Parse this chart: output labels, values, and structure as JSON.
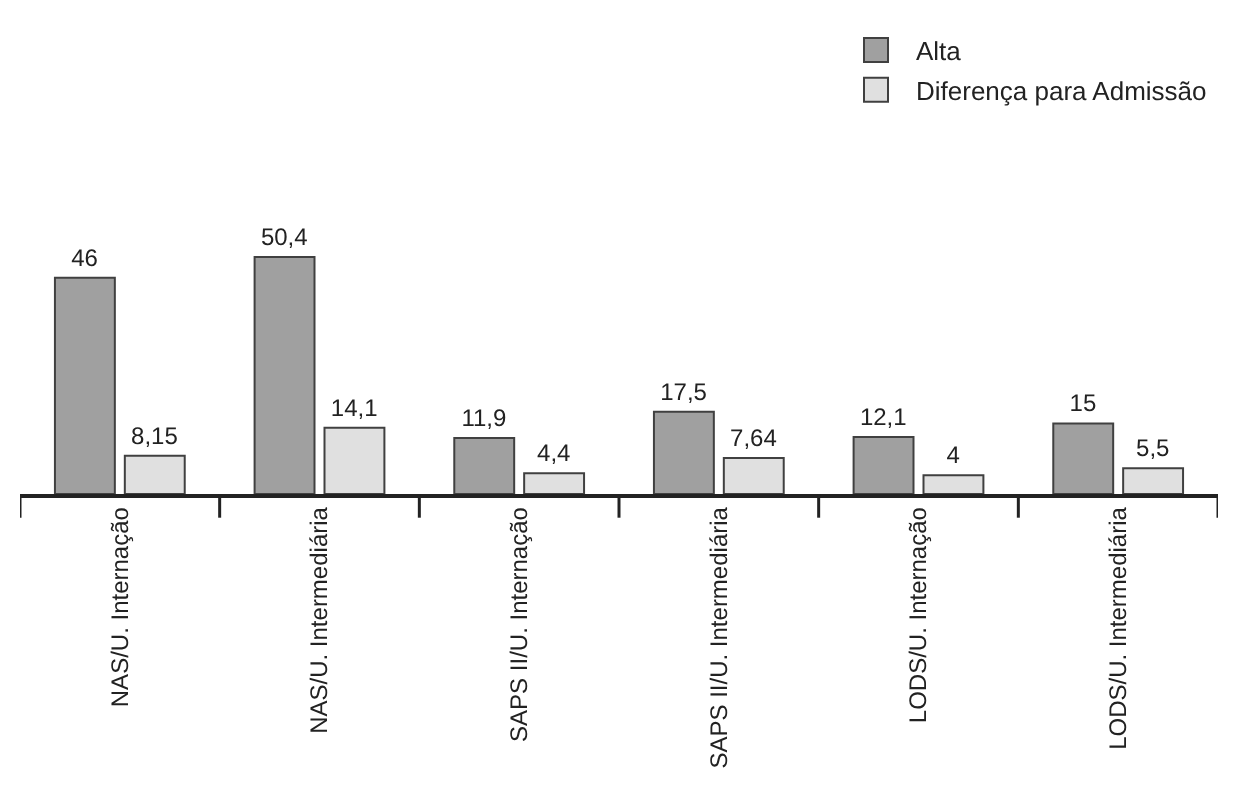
{
  "chart_data": {
    "type": "bar",
    "categories": [
      "NAS/U. Internação",
      "NAS/U. Intermediária",
      "SAPS II/U. Internação",
      "SAPS II/U. Intermediária",
      "LODS/U. Internação",
      "LODS/U. Intermediária"
    ],
    "series": [
      {
        "name": "Alta",
        "color": "#a0a0a0",
        "values": [
          46,
          50.4,
          11.9,
          17.5,
          12.1,
          15
        ],
        "value_labels": [
          "46",
          "50,4",
          "11,9",
          "17,5",
          "12,1",
          "15"
        ]
      },
      {
        "name": "Diferença para Admissão",
        "color": "#e0e0e0",
        "values": [
          8.15,
          14.1,
          4.4,
          7.64,
          4,
          5.5
        ],
        "value_labels": [
          "8,15",
          "14,1",
          "4,4",
          "7,64",
          "4",
          "5,5"
        ]
      }
    ],
    "legend": "top right"
  }
}
